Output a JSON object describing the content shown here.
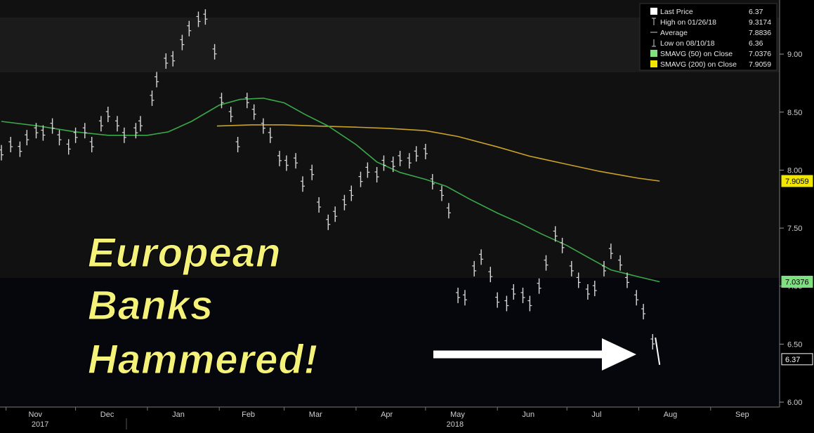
{
  "headline": [
    "European",
    "Banks",
    "Hammered!"
  ],
  "legend": [
    {
      "label": "Last Price",
      "value": "6.37",
      "swatch": "#ffffff",
      "marker": "square"
    },
    {
      "label": "High on 01/26/18",
      "value": "9.3174",
      "swatch": "#cccccc",
      "marker": "high"
    },
    {
      "label": "Average",
      "value": "7.8836",
      "swatch": "#cccccc",
      "marker": "avg"
    },
    {
      "label": "Low on 08/10/18",
      "value": "6.36",
      "swatch": "#cccccc",
      "marker": "low"
    },
    {
      "label": "SMAVG (50) on Close",
      "value": "7.0376",
      "swatch": "#7fe07f",
      "marker": "square"
    },
    {
      "label": "SMAVG (200) on Close",
      "value": "7.9059",
      "swatch": "#f2e600",
      "marker": "square"
    }
  ],
  "colors": {
    "price": "#d8d8d8",
    "last_segment": "#ffffff",
    "sma50": "#3aa84a",
    "sma200": "#c9a227",
    "sma200_tag": "#f2e600",
    "sma50_tag": "#7fe07f",
    "headline": "#f5f27a",
    "arrow": "#ffffff"
  },
  "price_tags": [
    {
      "text": "7.9059",
      "value": 7.9059,
      "kind": "sma200"
    },
    {
      "text": "7.0376",
      "value": 7.0376,
      "kind": "sma50"
    },
    {
      "text": "6.37",
      "value": 6.37,
      "kind": "last"
    }
  ],
  "chart_data": {
    "type": "line",
    "title": "",
    "y_ticks": [
      "9.00",
      "8.50",
      "8.00",
      "7.50",
      "7.00",
      "6.50",
      "6.00"
    ],
    "ylim": [
      6.0,
      9.5
    ],
    "x_months": [
      "Nov",
      "Dec",
      "Jan",
      "Feb",
      "Mar",
      "Apr",
      "May",
      "Jun",
      "Jul",
      "Aug",
      "Sep"
    ],
    "x_years": [
      "2017",
      "2018"
    ],
    "x_range": [
      "2017-10-30",
      "2018-09-30"
    ],
    "series": [
      {
        "name": "Last Price",
        "style": "bars",
        "x": [
          "2017-10-30",
          "2017-11-03",
          "2017-11-07",
          "2017-11-10",
          "2017-11-14",
          "2017-11-17",
          "2017-11-21",
          "2017-11-24",
          "2017-11-28",
          "2017-12-01",
          "2017-12-05",
          "2017-12-08",
          "2017-12-12",
          "2017-12-15",
          "2017-12-19",
          "2017-12-22",
          "2017-12-27",
          "2017-12-29",
          "2018-01-03",
          "2018-01-05",
          "2018-01-09",
          "2018-01-12",
          "2018-01-16",
          "2018-01-19",
          "2018-01-23",
          "2018-01-26",
          "2018-01-30",
          "2018-02-02",
          "2018-02-06",
          "2018-02-09",
          "2018-02-13",
          "2018-02-16",
          "2018-02-20",
          "2018-02-23",
          "2018-02-27",
          "2018-03-02",
          "2018-03-06",
          "2018-03-09",
          "2018-03-13",
          "2018-03-16",
          "2018-03-20",
          "2018-03-23",
          "2018-03-27",
          "2018-03-30",
          "2018-04-03",
          "2018-04-06",
          "2018-04-10",
          "2018-04-13",
          "2018-04-17",
          "2018-04-20",
          "2018-04-24",
          "2018-04-27",
          "2018-05-01",
          "2018-05-04",
          "2018-05-08",
          "2018-05-11",
          "2018-05-15",
          "2018-05-18",
          "2018-05-22",
          "2018-05-25",
          "2018-05-29",
          "2018-06-01",
          "2018-06-05",
          "2018-06-08",
          "2018-06-12",
          "2018-06-15",
          "2018-06-19",
          "2018-06-22",
          "2018-06-26",
          "2018-06-29",
          "2018-07-03",
          "2018-07-06",
          "2018-07-10",
          "2018-07-13",
          "2018-07-17",
          "2018-07-20",
          "2018-07-24",
          "2018-07-27",
          "2018-07-31",
          "2018-08-03",
          "2018-08-07",
          "2018-08-10"
        ],
        "values": [
          8.15,
          8.22,
          8.18,
          8.28,
          8.34,
          8.32,
          8.38,
          8.28,
          8.2,
          8.3,
          8.34,
          8.22,
          8.4,
          8.48,
          8.4,
          8.3,
          8.34,
          8.4,
          8.62,
          8.78,
          8.94,
          8.96,
          9.1,
          9.22,
          9.3,
          9.32,
          9.02,
          8.6,
          8.48,
          8.22,
          8.6,
          8.5,
          8.38,
          8.3,
          8.1,
          8.06,
          8.08,
          7.88,
          7.98,
          7.7,
          7.55,
          7.62,
          7.72,
          7.8,
          7.92,
          8.0,
          7.96,
          8.06,
          8.05,
          8.1,
          8.08,
          8.14,
          8.16,
          7.9,
          7.8,
          7.65,
          6.92,
          6.9,
          7.15,
          7.25,
          7.1,
          6.88,
          6.85,
          6.95,
          6.92,
          6.85,
          7.0,
          7.2,
          7.45,
          7.35,
          7.15,
          7.05,
          6.95,
          6.98,
          7.15,
          7.3,
          7.2,
          7.05,
          6.9,
          6.78,
          6.52,
          6.37
        ]
      },
      {
        "name": "SMAVG (50) on Close",
        "x": [
          "2017-10-30",
          "2017-11-15",
          "2017-12-01",
          "2017-12-15",
          "2018-01-01",
          "2018-01-10",
          "2018-01-20",
          "2018-02-01",
          "2018-02-10",
          "2018-02-20",
          "2018-03-01",
          "2018-03-10",
          "2018-03-20",
          "2018-04-01",
          "2018-04-10",
          "2018-04-20",
          "2018-05-01",
          "2018-05-10",
          "2018-05-20",
          "2018-06-01",
          "2018-06-10",
          "2018-06-20",
          "2018-07-01",
          "2018-07-10",
          "2018-07-20",
          "2018-08-01",
          "2018-08-10"
        ],
        "values": [
          8.42,
          8.38,
          8.33,
          8.3,
          8.3,
          8.33,
          8.42,
          8.56,
          8.61,
          8.62,
          8.58,
          8.48,
          8.38,
          8.22,
          8.07,
          7.98,
          7.92,
          7.86,
          7.75,
          7.63,
          7.55,
          7.45,
          7.35,
          7.25,
          7.14,
          7.08,
          7.0376
        ]
      },
      {
        "name": "SMAVG (200) on Close",
        "x": [
          "2018-01-31",
          "2018-02-15",
          "2018-03-01",
          "2018-03-15",
          "2018-04-01",
          "2018-04-15",
          "2018-05-01",
          "2018-05-15",
          "2018-06-01",
          "2018-06-15",
          "2018-07-01",
          "2018-07-15",
          "2018-08-01",
          "2018-08-10"
        ],
        "values": [
          8.38,
          8.39,
          8.39,
          8.38,
          8.37,
          8.36,
          8.34,
          8.29,
          8.2,
          8.12,
          8.05,
          7.99,
          7.93,
          7.9059
        ]
      }
    ]
  }
}
